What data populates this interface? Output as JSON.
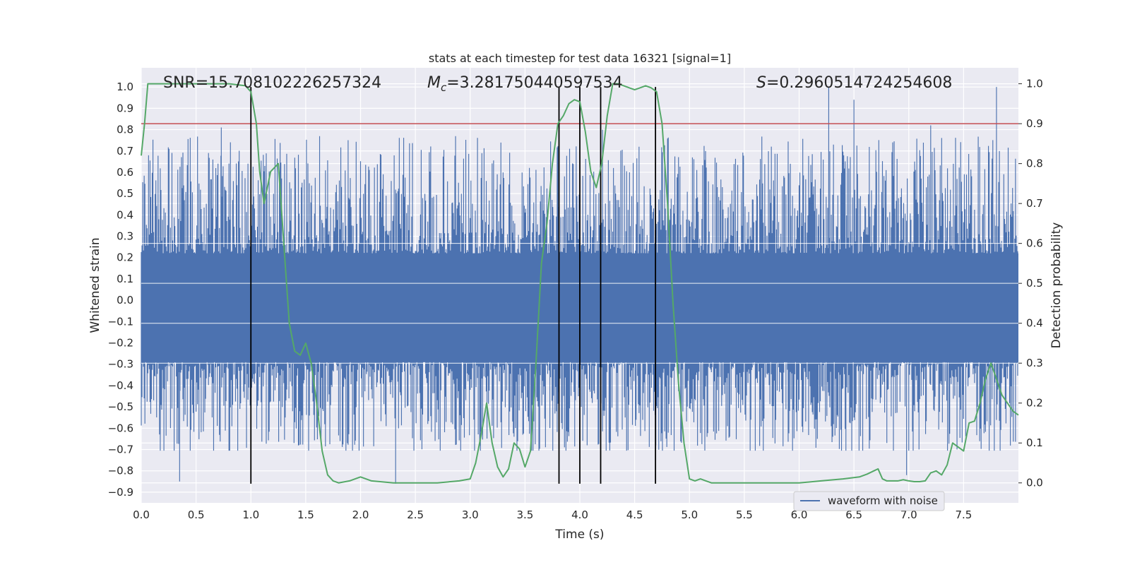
{
  "chart_data": {
    "type": "line",
    "title": "stats at each timestep for test data 16321 [signal=1]",
    "xlabel": "Time (s)",
    "ylabel_left": "Whitened strain",
    "ylabel_right": "Detection probability",
    "xlim": [
      0,
      8
    ],
    "ylim_left": [
      -0.95,
      1.09
    ],
    "ylim_right": [
      -0.05,
      1.04
    ],
    "x_ticks": [
      "0.0",
      "0.5",
      "1.0",
      "1.5",
      "2.0",
      "2.5",
      "3.0",
      "3.5",
      "4.0",
      "4.5",
      "5.0",
      "5.5",
      "6.0",
      "6.5",
      "7.0",
      "7.5"
    ],
    "y_left_ticks": [
      "−0.9",
      "−0.8",
      "−0.7",
      "−0.6",
      "−0.5",
      "−0.4",
      "−0.3",
      "−0.2",
      "−0.1",
      "0.0",
      "0.1",
      "0.2",
      "0.3",
      "0.4",
      "0.5",
      "0.6",
      "0.7",
      "0.8",
      "0.9",
      "1.0"
    ],
    "y_right_ticks": [
      "0.0",
      "0.1",
      "0.2",
      "0.3",
      "0.4",
      "0.5",
      "0.6",
      "0.7",
      "0.8",
      "0.9",
      "1.0"
    ],
    "grid": true,
    "legend": {
      "entry": "waveform with noise",
      "placement": "lower-right"
    },
    "annotations": {
      "snr": "SNR=15.708102226257324",
      "mc_symbol": "M",
      "mc_sub": "c",
      "mc_value": "=3.281750440597534",
      "s_symbol": "S",
      "s_value": "=0.2960514724254608"
    },
    "threshold_right": 0.9,
    "vlines_x": [
      1.0,
      3.81,
      4.0,
      4.19,
      4.69
    ],
    "vline_ymin_left": -0.86,
    "vline_ymax_left": 1.0,
    "waveform": {
      "name": "waveform with noise",
      "duration": 8.0,
      "n_samples": 1200,
      "core_pos": 0.22,
      "core_neg": -0.29,
      "peak_max": 1.0,
      "peak_min": -0.86,
      "peaks": [
        [
          0.73,
          0.81
        ],
        [
          6.27,
          1.0
        ],
        [
          6.5,
          0.94
        ],
        [
          7.8,
          1.0
        ],
        [
          7.2,
          0.82
        ],
        [
          2.32,
          -0.86
        ],
        [
          0.35,
          -0.85
        ],
        [
          6.98,
          -0.82
        ]
      ]
    },
    "probability": {
      "x": [
        0,
        0.03,
        0.06,
        0.12,
        0.2,
        0.5,
        0.8,
        0.95,
        1.0,
        1.05,
        1.08,
        1.12,
        1.18,
        1.25,
        1.3,
        1.35,
        1.4,
        1.45,
        1.5,
        1.55,
        1.6,
        1.65,
        1.7,
        1.75,
        1.8,
        1.9,
        2.0,
        2.1,
        2.3,
        2.5,
        2.7,
        2.9,
        3.0,
        3.05,
        3.1,
        3.15,
        3.2,
        3.25,
        3.3,
        3.35,
        3.4,
        3.45,
        3.5,
        3.55,
        3.6,
        3.65,
        3.7,
        3.75,
        3.8,
        3.85,
        3.9,
        3.95,
        4.0,
        4.05,
        4.1,
        4.15,
        4.2,
        4.25,
        4.3,
        4.35,
        4.4,
        4.45,
        4.5,
        4.55,
        4.6,
        4.65,
        4.7,
        4.75,
        4.8,
        4.85,
        4.9,
        4.95,
        5.0,
        5.05,
        5.1,
        5.15,
        5.2,
        5.3,
        5.5,
        6.0,
        6.2,
        6.4,
        6.55,
        6.62,
        6.68,
        6.72,
        6.76,
        6.8,
        6.9,
        6.95,
        7.0,
        7.05,
        7.1,
        7.15,
        7.2,
        7.25,
        7.3,
        7.35,
        7.4,
        7.45,
        7.5,
        7.55,
        7.6,
        7.65,
        7.7,
        7.75,
        7.8,
        7.85,
        7.9,
        7.95,
        8.0
      ],
      "y": [
        0.82,
        0.9,
        1.0,
        1.0,
        1.0,
        1.0,
        1.0,
        0.995,
        0.98,
        0.9,
        0.78,
        0.7,
        0.78,
        0.8,
        0.6,
        0.4,
        0.33,
        0.32,
        0.35,
        0.3,
        0.2,
        0.08,
        0.02,
        0.005,
        0.0,
        0.005,
        0.015,
        0.005,
        0.0,
        0.0,
        0.0,
        0.005,
        0.01,
        0.05,
        0.12,
        0.2,
        0.1,
        0.04,
        0.015,
        0.035,
        0.1,
        0.085,
        0.04,
        0.08,
        0.3,
        0.55,
        0.65,
        0.8,
        0.9,
        0.92,
        0.95,
        0.96,
        0.955,
        0.88,
        0.78,
        0.74,
        0.8,
        0.92,
        1.0,
        1.0,
        0.995,
        0.99,
        0.985,
        0.99,
        0.995,
        0.99,
        0.98,
        0.9,
        0.7,
        0.45,
        0.25,
        0.1,
        0.01,
        0.005,
        0.01,
        0.005,
        0.0,
        0.0,
        0.0,
        0.0,
        0.005,
        0.01,
        0.015,
        0.022,
        0.03,
        0.035,
        0.01,
        0.005,
        0.005,
        0.008,
        0.005,
        0.003,
        0.003,
        0.005,
        0.025,
        0.03,
        0.02,
        0.045,
        0.1,
        0.09,
        0.08,
        0.15,
        0.155,
        0.2,
        0.26,
        0.3,
        0.26,
        0.22,
        0.2,
        0.18,
        0.17
      ]
    },
    "colors": {
      "waveform": "#4c72b0",
      "probability": "#55a868",
      "threshold": "#c44e52",
      "vline": "#000000",
      "plot_bg": "#eaeaf2",
      "grid": "#ffffff",
      "text": "#262626"
    }
  }
}
